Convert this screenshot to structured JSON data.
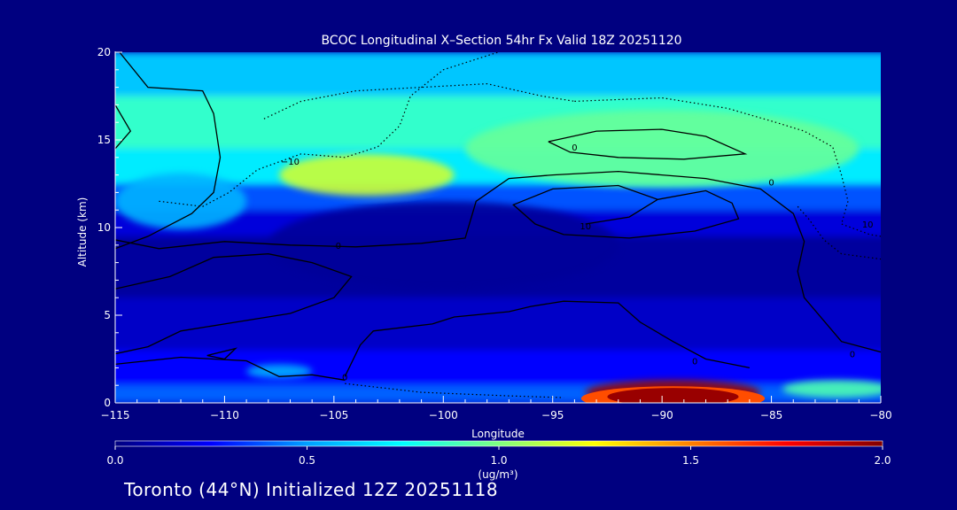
{
  "chart_data": {
    "type": "heatmap",
    "title": "BCOC Longitudinal X–Section 54hr  Fx Valid 18Z 20251120",
    "xlabel": "Longitude",
    "ylabel": "Altitude (km)",
    "xlim": [
      -115,
      -80
    ],
    "ylim": [
      0,
      20
    ],
    "x_ticks": [
      -115,
      -110,
      -105,
      -100,
      -95,
      -90,
      -85,
      -80
    ],
    "x_tick_labels": [
      "−115",
      "−110",
      "−105",
      "−100",
      "−95",
      "−90",
      "−85",
      "−80"
    ],
    "y_ticks": [
      0,
      5,
      10,
      15,
      20
    ],
    "y_tick_labels": [
      "0",
      "5",
      "10",
      "15",
      "20"
    ],
    "colorbar": {
      "range": [
        0.0,
        2.0
      ],
      "ticks": [
        0.0,
        0.5,
        1.0,
        1.5,
        2.0
      ],
      "tick_labels": [
        "0.0",
        "0.5",
        "1.0",
        "1.5",
        "2.0"
      ],
      "units_label": "(ug/m³)",
      "colors": [
        "#000080",
        "#0000ff",
        "#00a0ff",
        "#00ffff",
        "#80ff80",
        "#ffff00",
        "#ff8000",
        "#ff0000",
        "#800000"
      ]
    },
    "field_features": [
      {
        "x": -89.5,
        "y": 0.6,
        "value": 1.95
      },
      {
        "x": -103.5,
        "y": 13.0,
        "value": 1.15
      },
      {
        "x": -90.0,
        "y": 14.5,
        "value": 0.95
      },
      {
        "x": -112.0,
        "y": 11.5,
        "value": 0.55
      },
      {
        "x": -100.0,
        "y": 9.0,
        "value": 0.05
      },
      {
        "x": -82.0,
        "y": 0.8,
        "value": 0.9
      },
      {
        "x": -107.5,
        "y": 1.8,
        "value": 0.55
      }
    ],
    "contour_labels": [
      {
        "text": "−10",
        "x": -107.0,
        "y": 13.8
      },
      {
        "text": "0",
        "x": -104.8,
        "y": 9.0
      },
      {
        "text": "0",
        "x": -94.0,
        "y": 14.6
      },
      {
        "text": "0",
        "x": -85.0,
        "y": 12.6
      },
      {
        "text": "10",
        "x": -93.5,
        "y": 10.1
      },
      {
        "text": "0",
        "x": -88.5,
        "y": 2.4
      },
      {
        "text": "0",
        "x": -104.5,
        "y": 1.5
      },
      {
        "text": "10",
        "x": -80.6,
        "y": 10.2
      },
      {
        "text": "0",
        "x": -81.3,
        "y": 2.8
      }
    ],
    "contours": [
      {
        "style": "solid",
        "points": [
          [
            -114.8,
            20
          ],
          [
            -113.5,
            18
          ],
          [
            -111,
            17.8
          ],
          [
            -110.5,
            16.5
          ],
          [
            -110.2,
            14
          ],
          [
            -110.5,
            12
          ],
          [
            -111.5,
            10.8
          ],
          [
            -113.5,
            9.5
          ],
          [
            -115,
            8.8
          ]
        ]
      },
      {
        "style": "solid",
        "points": [
          [
            -115,
            17
          ],
          [
            -114.3,
            15.5
          ],
          [
            -115,
            14.5
          ]
        ]
      },
      {
        "style": "solid",
        "points": [
          [
            -115,
            9.3
          ],
          [
            -113,
            8.8
          ],
          [
            -110,
            9.2
          ],
          [
            -107,
            9.0
          ],
          [
            -104,
            8.9
          ],
          [
            -101,
            9.1
          ],
          [
            -99,
            9.4
          ],
          [
            -98.5,
            11.5
          ],
          [
            -97,
            12.8
          ],
          [
            -95,
            13.0
          ],
          [
            -92,
            13.2
          ],
          [
            -88,
            12.8
          ],
          [
            -85.5,
            12.2
          ],
          [
            -84,
            10.8
          ],
          [
            -83.5,
            9.2
          ],
          [
            -83.8,
            7.5
          ],
          [
            -83.5,
            6
          ],
          [
            -81.8,
            3.5
          ],
          [
            -80,
            2.9
          ]
        ]
      },
      {
        "style": "solid",
        "points": [
          [
            -115,
            6.5
          ],
          [
            -112.5,
            7.2
          ],
          [
            -110.5,
            8.3
          ],
          [
            -108,
            8.5
          ],
          [
            -106,
            8.0
          ],
          [
            -104.2,
            7.2
          ],
          [
            -105,
            6.0
          ],
          [
            -107,
            5.1
          ],
          [
            -109.5,
            4.6
          ],
          [
            -112,
            4.1
          ],
          [
            -113.5,
            3.2
          ],
          [
            -115,
            2.8
          ]
        ]
      },
      {
        "style": "solid",
        "points": [
          [
            -110,
            2.5
          ],
          [
            -110.8,
            2.7
          ],
          [
            -109.5,
            3.1
          ],
          [
            -110,
            2.5
          ]
        ]
      },
      {
        "style": "solid",
        "points": [
          [
            -104.5,
            1.5
          ],
          [
            -103.8,
            3.3
          ],
          [
            -103.2,
            4.1
          ],
          [
            -100.5,
            4.5
          ],
          [
            -99.5,
            4.9
          ],
          [
            -97,
            5.2
          ],
          [
            -96,
            5.5
          ],
          [
            -94.5,
            5.8
          ],
          [
            -92,
            5.7
          ],
          [
            -91,
            4.6
          ],
          [
            -89.5,
            3.5
          ],
          [
            -88,
            2.5
          ],
          [
            -86,
            2.0
          ]
        ]
      },
      {
        "style": "solid",
        "points": [
          [
            -95.2,
            14.9
          ],
          [
            -93,
            15.5
          ],
          [
            -90,
            15.6
          ],
          [
            -88,
            15.2
          ],
          [
            -86.2,
            14.2
          ],
          [
            -89,
            13.9
          ],
          [
            -92,
            14.0
          ],
          [
            -94.2,
            14.3
          ],
          [
            -95.2,
            14.9
          ]
        ]
      },
      {
        "style": "solid",
        "points": [
          [
            -93.5,
            10.2
          ],
          [
            -91.5,
            10.6
          ],
          [
            -90.2,
            11.6
          ],
          [
            -92,
            12.4
          ],
          [
            -95,
            12.2
          ],
          [
            -96.8,
            11.3
          ],
          [
            -95.8,
            10.2
          ],
          [
            -94.5,
            9.6
          ],
          [
            -91.5,
            9.4
          ],
          [
            -88.5,
            9.8
          ],
          [
            -86.5,
            10.5
          ],
          [
            -86.8,
            11.4
          ],
          [
            -88,
            12.1
          ],
          [
            -90.2,
            11.6
          ]
        ]
      },
      {
        "style": "solid",
        "points": [
          [
            -115,
            2.2
          ],
          [
            -112,
            2.6
          ],
          [
            -109,
            2.4
          ],
          [
            -107.5,
            1.5
          ],
          [
            -106,
            1.6
          ],
          [
            -104.5,
            1.3
          ]
        ]
      },
      {
        "style": "dotted",
        "points": [
          [
            -113,
            11.5
          ],
          [
            -111,
            11.2
          ],
          [
            -109.8,
            12.0
          ],
          [
            -108.5,
            13.3
          ],
          [
            -106.5,
            14.2
          ],
          [
            -104.5,
            14.0
          ],
          [
            -103,
            14.6
          ],
          [
            -102,
            15.8
          ],
          [
            -101.5,
            17.5
          ],
          [
            -100,
            19.0
          ],
          [
            -97.5,
            20
          ]
        ]
      },
      {
        "style": "dotted",
        "points": [
          [
            -108.2,
            16.2
          ],
          [
            -106.5,
            17.2
          ],
          [
            -104,
            17.8
          ],
          [
            -101,
            18.0
          ],
          [
            -98,
            18.2
          ],
          [
            -95.5,
            17.5
          ],
          [
            -94,
            17.2
          ]
        ]
      },
      {
        "style": "dotted",
        "points": [
          [
            -94,
            17.2
          ],
          [
            -90,
            17.4
          ],
          [
            -87,
            16.8
          ],
          [
            -84.8,
            16.0
          ],
          [
            -83.5,
            15.5
          ],
          [
            -82.2,
            14.6
          ],
          [
            -81.8,
            13.0
          ],
          [
            -81.5,
            11.5
          ],
          [
            -81.8,
            10.2
          ],
          [
            -80.5,
            9.6
          ],
          [
            -80,
            9.5
          ]
        ]
      },
      {
        "style": "dotted",
        "points": [
          [
            -83.8,
            11.2
          ],
          [
            -83.3,
            10.5
          ],
          [
            -82.6,
            9.3
          ],
          [
            -81.8,
            8.5
          ],
          [
            -80,
            8.2
          ]
        ]
      },
      {
        "style": "dotted",
        "points": [
          [
            -104.5,
            1.1
          ],
          [
            -101,
            0.6
          ],
          [
            -97,
            0.4
          ],
          [
            -94.5,
            0.3
          ]
        ]
      }
    ]
  },
  "footer": {
    "text": "Toronto (44°N) Initialized 12Z 20251118"
  }
}
